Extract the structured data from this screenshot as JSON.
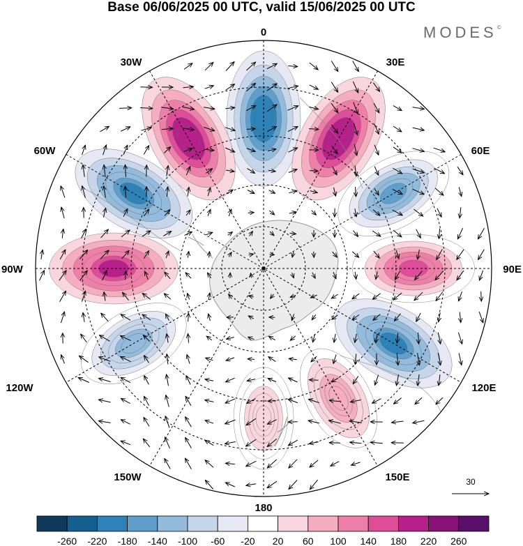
{
  "title": "Base 06/06/2025 00 UTC, valid 15/06/2025 00 UTC",
  "brand": {
    "name": "MODES",
    "mark": "©"
  },
  "map": {
    "projection": "south polar stereographic",
    "longitude_labels": {
      "top": "0",
      "bottom": "180",
      "left": "90W",
      "right": "90E",
      "upper_left_30": "30W",
      "upper_right_30": "30E",
      "upper_left_60": "60W",
      "upper_right_60": "60E",
      "lower_left_120": "120W",
      "lower_right_120": "120E",
      "lower_left_150": "150W",
      "lower_right_150": "150E"
    },
    "reference_vector_label": "30",
    "anomaly_centres": [
      {
        "sign": "negative",
        "near": "0",
        "strength": -260
      },
      {
        "sign": "positive",
        "near": "30E",
        "strength": 260
      },
      {
        "sign": "negative",
        "near": "60E",
        "strength": -180
      },
      {
        "sign": "positive",
        "near": "90E",
        "strength": 180
      },
      {
        "sign": "negative",
        "near": "120E",
        "strength": -220
      },
      {
        "sign": "positive",
        "near": "150E",
        "strength": 100
      },
      {
        "sign": "positive",
        "near": "180",
        "strength": 60
      },
      {
        "sign": "negative",
        "near": "120W",
        "strength": -140
      },
      {
        "sign": "positive",
        "near": "90W",
        "strength": 220
      },
      {
        "sign": "negative",
        "near": "60W",
        "strength": -220
      },
      {
        "sign": "positive",
        "near": "30W",
        "strength": 260
      }
    ]
  },
  "colorbar": {
    "ticks": [
      "-260",
      "-220",
      "-180",
      "-140",
      "-100",
      "-60",
      "-20",
      "20",
      "60",
      "100",
      "140",
      "180",
      "220",
      "260"
    ],
    "colors": [
      "#10395a",
      "#13608f",
      "#2d82b8",
      "#5f9fcb",
      "#93bbdc",
      "#c6d6ea",
      "#e6e8f3",
      "#ffffff",
      "#f9d6de",
      "#f5aebf",
      "#ee7fa8",
      "#dd4d98",
      "#b71f8b",
      "#871174",
      "#5a0f6b"
    ]
  }
}
